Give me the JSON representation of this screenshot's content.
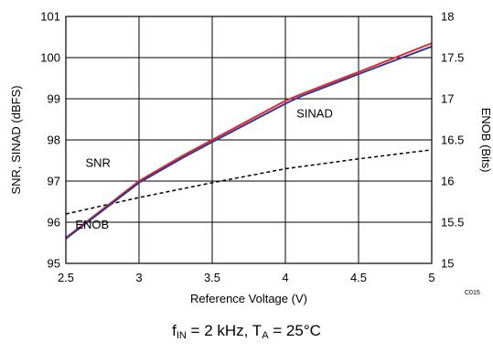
{
  "chart_data": {
    "type": "line",
    "xlabel": "Reference Voltage (V)",
    "ylabel_left": "SNR, SINAD (dBFS)",
    "ylabel_right": "ENOB (Bits)",
    "xlim": [
      2.5,
      5
    ],
    "ylim_left": [
      95,
      101
    ],
    "ylim_right": [
      15,
      18
    ],
    "x_ticks": [
      "2.5",
      "3",
      "3.5",
      "4",
      "4.5",
      "5"
    ],
    "y_ticks_left": [
      "95",
      "96",
      "97",
      "98",
      "99",
      "100",
      "101"
    ],
    "y_ticks_right": [
      "15",
      "15.5",
      "16",
      "16.5",
      "17",
      "17.5",
      "18"
    ],
    "grid": true,
    "series": [
      {
        "name": "SNR",
        "axis": "left",
        "color": "#e8202a",
        "style": "solid",
        "x": [
          2.5,
          3.0,
          3.3,
          3.5,
          4.0,
          4.1,
          4.5,
          5.0
        ],
        "y": [
          95.62,
          97.0,
          97.62,
          98.0,
          98.95,
          99.1,
          99.65,
          100.35
        ]
      },
      {
        "name": "SINAD",
        "axis": "left",
        "color": "#2e3a8c",
        "style": "solid",
        "x": [
          2.5,
          3.0,
          3.3,
          3.5,
          4.0,
          4.1,
          4.5,
          5.0
        ],
        "y": [
          95.6,
          96.96,
          97.57,
          97.95,
          98.88,
          99.05,
          99.6,
          100.27
        ]
      },
      {
        "name": "ENOB",
        "axis": "right",
        "color": "#000000",
        "style": "dashed",
        "x": [
          2.5,
          3.0,
          3.5,
          4.0,
          4.5,
          5.0
        ],
        "y": [
          15.6,
          15.8,
          15.98,
          16.15,
          16.27,
          16.38
        ]
      }
    ],
    "annotations": [
      {
        "text": "SNR",
        "x": 2.72,
        "y": 97.35
      },
      {
        "text": "SINAD",
        "x": 4.2,
        "y": 98.55
      },
      {
        "text": "ENOB",
        "x": 2.68,
        "y": 95.85
      }
    ],
    "figure_code": "C015"
  },
  "caption": {
    "f_main": "f",
    "f_sub": "IN",
    "f_rest": " = 2 kHz, T",
    "t_sub": "A",
    "t_rest": " = 25°C"
  }
}
